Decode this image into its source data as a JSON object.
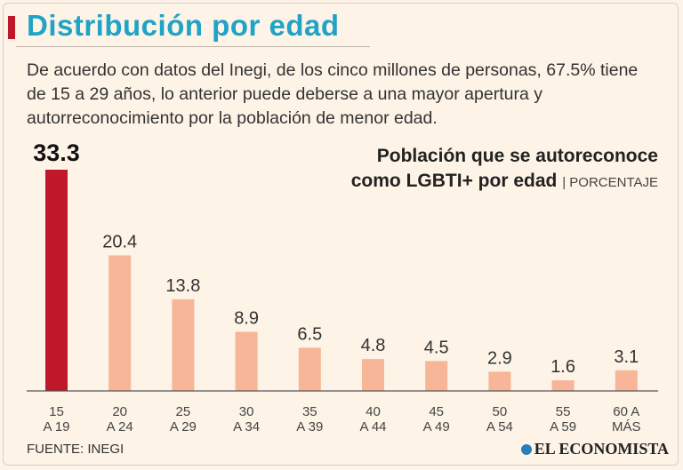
{
  "header": {
    "title": "Distribución por edad",
    "intro": "De acuerdo con datos del Inegi, de los cinco millones de personas, 67.5% tiene de 15 a 29 años, lo anterior puede deberse a una mayor apertura y autorreconocimiento por la población de menor edad."
  },
  "chart_data": {
    "type": "bar",
    "title_line1": "Población que se autoreconoce",
    "title_line2": "como LGBTI+ por edad",
    "unit": "PORCENTAJE",
    "categories": [
      [
        "15",
        "A 19"
      ],
      [
        "20",
        "A 24"
      ],
      [
        "25",
        "A 29"
      ],
      [
        "30",
        "A 34"
      ],
      [
        "35",
        "A 39"
      ],
      [
        "40",
        "A 44"
      ],
      [
        "45",
        "A 49"
      ],
      [
        "50",
        "A 54"
      ],
      [
        "55",
        "A 59"
      ],
      [
        "60 A",
        "MÁS"
      ]
    ],
    "values": [
      33.3,
      20.4,
      13.8,
      8.9,
      6.5,
      4.8,
      4.5,
      2.9,
      1.6,
      3.1
    ],
    "value_labels": [
      "33.3",
      "20.4",
      "13.8",
      "8.9",
      "6.5",
      "4.8",
      "4.5",
      "2.9",
      "1.6",
      "3.1"
    ],
    "highlight_index": 0,
    "colors": {
      "highlight": "#c0182b",
      "bar": "#f6b697",
      "axis": "#555555"
    },
    "ylim": [
      0,
      33.3
    ]
  },
  "footer": {
    "source": "FUENTE: INEGI",
    "brand": "EL ECONOMISTA"
  }
}
